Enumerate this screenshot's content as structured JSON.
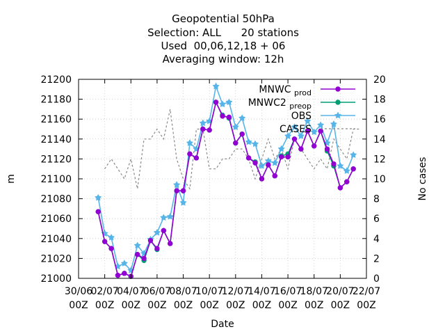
{
  "chart_data": {
    "type": "line",
    "title_lines": [
      "Geopotential 50hPa",
      "Selection: ALL      20 stations",
      "Used  00,06,12,18 + 06",
      "Averaging window: 12h"
    ],
    "xlabel": "Date",
    "ylabel": "m",
    "y2label": "No cases",
    "xlim": [
      0,
      22
    ],
    "ylim": [
      21000,
      21200
    ],
    "y2lim": [
      0,
      20
    ],
    "grid": true,
    "legend_position": "top-right",
    "x_ticks": [
      {
        "x": 0,
        "line1": "30/06",
        "line2": "00Z"
      },
      {
        "x": 2,
        "line1": "02/07",
        "line2": "00Z"
      },
      {
        "x": 4,
        "line1": "04/07",
        "line2": "00Z"
      },
      {
        "x": 6,
        "line1": "06/07",
        "line2": "00Z"
      },
      {
        "x": 8,
        "line1": "08/07",
        "line2": "00Z"
      },
      {
        "x": 10,
        "line1": "10/07",
        "line2": "00Z"
      },
      {
        "x": 12,
        "line1": "12/07",
        "line2": "00Z"
      },
      {
        "x": 14,
        "line1": "14/07",
        "line2": "00Z"
      },
      {
        "x": 16,
        "line1": "16/07",
        "line2": "00Z"
      },
      {
        "x": 18,
        "line1": "18/07",
        "line2": "00Z"
      },
      {
        "x": 20,
        "line1": "20/07",
        "line2": "00Z"
      },
      {
        "x": 22,
        "line1": "22/07",
        "line2": "00Z"
      }
    ],
    "y_ticks": [
      21000,
      21020,
      21040,
      21060,
      21080,
      21100,
      21120,
      21140,
      21160,
      21180,
      21200
    ],
    "y2_ticks": [
      0,
      2,
      4,
      6,
      8,
      10,
      12,
      14,
      16,
      18,
      20
    ],
    "x": [
      1.5,
      2.0,
      2.5,
      3.0,
      3.5,
      4.0,
      4.5,
      5.0,
      5.5,
      6.0,
      6.5,
      7.0,
      7.5,
      8.0,
      8.5,
      9.0,
      9.5,
      10.0,
      10.5,
      11.0,
      11.5,
      12.0,
      12.5,
      13.0,
      13.5,
      14.0,
      14.5,
      15.0,
      15.5,
      16.0,
      16.5,
      17.0,
      17.5,
      18.0,
      18.5,
      19.0,
      19.5,
      20.0,
      20.5,
      21.0,
      21.5
    ],
    "series": [
      {
        "name": "MNWC_prod",
        "color": "#9400d3",
        "marker": "circle",
        "values": [
          21067,
          21037,
          21030,
          21003,
          21005,
          21002,
          21024,
          21020,
          21038,
          21030,
          21048,
          21035,
          21088,
          21088,
          21125,
          21121,
          21150,
          21149,
          21177,
          21163,
          21162,
          21136,
          21145,
          21121,
          21116,
          21100,
          21114,
          21103,
          21122,
          21122,
          21140,
          21130,
          21148,
          21133,
          21148,
          21130,
          21115,
          21091,
          21097,
          21110,
          null
        ]
      },
      {
        "name": "MNWC2_preop",
        "color": "#009e73",
        "marker": "circle",
        "values": [
          21067,
          21037,
          21030,
          21003,
          21005,
          21002,
          21024,
          21018,
          21038,
          21029,
          21048,
          21035,
          21088,
          21088,
          21125,
          21121,
          21150,
          21149,
          21177,
          21164,
          21161,
          21136,
          21145,
          21121,
          21117,
          21100,
          21114,
          21103,
          21123,
          21125,
          21140,
          21130,
          21148,
          21133,
          21148,
          21128,
          21113,
          21091,
          21097,
          21110,
          null
        ]
      },
      {
        "name": "OBS",
        "color": "#56b4e9",
        "marker": "star",
        "values": [
          21081,
          21045,
          21041,
          21012,
          21015,
          21008,
          21033,
          21025,
          21039,
          21046,
          21061,
          21062,
          21094,
          21076,
          21136,
          21130,
          21156,
          21158,
          21193,
          21175,
          21177,
          21152,
          21161,
          21137,
          21135,
          21113,
          21118,
          21116,
          21130,
          21143,
          21152,
          21143,
          21158,
          21147,
          21154,
          21136,
          21155,
          21113,
          21108,
          21124,
          null
        ]
      },
      {
        "name": "CASES",
        "color": "#888888",
        "axis": "right",
        "dashed": true,
        "marker": "none",
        "values": [
          null,
          11,
          12,
          11,
          10,
          12,
          9,
          14,
          14,
          15,
          14,
          17,
          12,
          10,
          9,
          15,
          15,
          11,
          11,
          12,
          12,
          13,
          13,
          12,
          10,
          12,
          14,
          12,
          13,
          11,
          14,
          13,
          12,
          11,
          12,
          11,
          14,
          13,
          12,
          15,
          15
        ]
      }
    ]
  }
}
